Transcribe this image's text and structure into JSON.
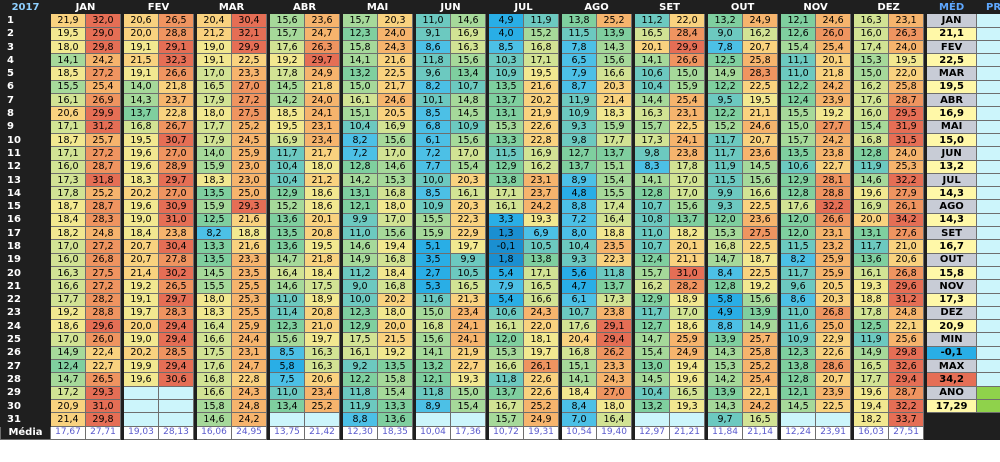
{
  "header": {
    "year": "2017",
    "months": [
      "JAN",
      "FEV",
      "MAR",
      "ABR",
      "MAI",
      "JUN",
      "JUL",
      "AGO",
      "SET",
      "OUT",
      "NOV",
      "DEZ"
    ],
    "med": "MÉD",
    "prec": "PREC"
  },
  "media_label": "Média",
  "media_values": [
    "17,67",
    "27,71",
    "19,03",
    "28,13",
    "16,06",
    "24,95",
    "13,75",
    "21,42",
    "12,30",
    "18,35",
    "10,04",
    "17,36",
    "10,72",
    "19,31",
    "10,54",
    "19,40",
    "12,97",
    "21,21",
    "11,84",
    "21,14",
    "12,24",
    "23,91",
    "16,03",
    "27,51"
  ],
  "days": [
    [
      "21,9",
      "32,0",
      "20,6",
      "26,5",
      "20,4",
      "30,4",
      "15,6",
      "23,6",
      "15,7",
      "20,3",
      "11,0",
      "14,6",
      "4,9",
      "11,9",
      "13,8",
      "25,2",
      "11,2",
      "22,0",
      "13,2",
      "24,9",
      "12,1",
      "24,6",
      "16,3",
      "23,1"
    ],
    [
      "19,5",
      "29,0",
      "20,0",
      "28,8",
      "21,2",
      "32,1",
      "15,7",
      "24,7",
      "12,3",
      "24,0",
      "9,1",
      "16,9",
      "4,0",
      "15,2",
      "11,5",
      "13,9",
      "16,5",
      "28,4",
      "9,0",
      "16,2",
      "12,6",
      "26,0",
      "16,0",
      "26,3"
    ],
    [
      "18,0",
      "29,8",
      "19,1",
      "29,1",
      "19,0",
      "29,9",
      "17,6",
      "26,3",
      "15,8",
      "24,3",
      "8,6",
      "16,3",
      "8,5",
      "16,8",
      "7,8",
      "14,3",
      "20,1",
      "29,9",
      "7,8",
      "20,7",
      "15,4",
      "25,4",
      "17,4",
      "24,0"
    ],
    [
      "14,1",
      "24,2",
      "21,5",
      "32,3",
      "19,1",
      "22,5",
      "19,2",
      "29,7",
      "14,1",
      "21,6",
      "11,8",
      "15,6",
      "10,3",
      "17,1",
      "6,5",
      "15,6",
      "14,1",
      "26,6",
      "12,5",
      "25,8",
      "11,1",
      "20,1",
      "15,3",
      "19,5"
    ],
    [
      "18,5",
      "27,2",
      "19,1",
      "26,6",
      "17,0",
      "23,3",
      "17,8",
      "24,9",
      "13,2",
      "22,5",
      "9,6",
      "13,4",
      "10,9",
      "19,5",
      "7,9",
      "16,6",
      "10,6",
      "15,0",
      "14,9",
      "28,3",
      "11,0",
      "21,8",
      "15,0",
      "22,0"
    ],
    [
      "15,5",
      "25,4",
      "14,0",
      "21,8",
      "16,5",
      "27,0",
      "14,5",
      "21,8",
      "15,0",
      "21,7",
      "8,2",
      "10,7",
      "13,5",
      "21,6",
      "8,7",
      "20,3",
      "10,4",
      "15,9",
      "12,2",
      "22,5",
      "12,2",
      "24,2",
      "16,2",
      "25,8"
    ],
    [
      "16,1",
      "26,9",
      "14,3",
      "23,7",
      "17,9",
      "27,2",
      "14,2",
      "24,0",
      "16,1",
      "24,6",
      "10,1",
      "14,8",
      "13,7",
      "20,2",
      "11,9",
      "21,4",
      "14,4",
      "25,4",
      "9,5",
      "19,5",
      "12,4",
      "23,9",
      "17,6",
      "28,7"
    ],
    [
      "20,6",
      "29,9",
      "13,7",
      "22,8",
      "18,0",
      "27,5",
      "18,5",
      "24,1",
      "15,1",
      "20,5",
      "8,5",
      "14,5",
      "13,1",
      "21,9",
      "10,9",
      "18,3",
      "16,3",
      "23,1",
      "12,2",
      "21,1",
      "15,5",
      "19,2",
      "16,0",
      "29,5"
    ],
    [
      "17,1",
      "31,2",
      "16,8",
      "26,7",
      "17,7",
      "25,2",
      "19,5",
      "23,1",
      "10,4",
      "16,9",
      "6,8",
      "10,9",
      "15,3",
      "22,6",
      "9,3",
      "15,9",
      "15,7",
      "22,5",
      "15,2",
      "24,6",
      "15,0",
      "27,7",
      "15,4",
      "31,9"
    ],
    [
      "18,7",
      "25,7",
      "19,5",
      "30,7",
      "17,9",
      "24,5",
      "16,9",
      "23,4",
      "8,2",
      "15,6",
      "6,1",
      "15,6",
      "13,3",
      "22,8",
      "9,8",
      "17,7",
      "17,3",
      "24,1",
      "11,7",
      "20,7",
      "15,7",
      "24,2",
      "16,8",
      "31,5"
    ],
    [
      "17,1",
      "27,2",
      "19,6",
      "27,0",
      "14,0",
      "25,9",
      "11,7",
      "21,7",
      "7,2",
      "17,0",
      "7,2",
      "17,0",
      "11,5",
      "16,9",
      "12,7",
      "13,7",
      "9,8",
      "23,8",
      "11,7",
      "23,6",
      "13,5",
      "23,8",
      "12,8",
      "24,0"
    ],
    [
      "16,0",
      "28,7",
      "19,6",
      "28,9",
      "15,9",
      "23,0",
      "10,4",
      "18,0",
      "12,8",
      "14,6",
      "7,7",
      "15,4",
      "12,9",
      "16,2",
      "13,7",
      "15,1",
      "8,3",
      "17,8",
      "11,9",
      "14,5",
      "10,6",
      "22,7",
      "11,9",
      "25,3"
    ],
    [
      "17,3",
      "31,8",
      "18,3",
      "29,7",
      "18,3",
      "23,0",
      "10,4",
      "21,2",
      "14,2",
      "15,3",
      "10,0",
      "20,3",
      "13,8",
      "23,1",
      "8,9",
      "15,4",
      "14,1",
      "17,0",
      "11,5",
      "15,6",
      "12,9",
      "28,1",
      "14,6",
      "32,2"
    ],
    [
      "17,8",
      "25,2",
      "20,2",
      "27,0",
      "13,5",
      "25,0",
      "12,9",
      "18,6",
      "13,1",
      "16,8",
      "8,5",
      "16,1",
      "17,1",
      "23,7",
      "4,8",
      "15,5",
      "12,8",
      "17,0",
      "9,9",
      "16,6",
      "12,8",
      "28,8",
      "19,6",
      "27,9"
    ],
    [
      "18,7",
      "28,7",
      "19,6",
      "30,9",
      "15,9",
      "29,3",
      "15,2",
      "18,6",
      "12,1",
      "18,0",
      "10,9",
      "20,3",
      "16,1",
      "24,2",
      "8,8",
      "17,4",
      "10,7",
      "15,6",
      "9,3",
      "22,5",
      "17,6",
      "32,2",
      "16,9",
      "26,1"
    ],
    [
      "18,4",
      "28,3",
      "19,0",
      "31,0",
      "12,5",
      "21,6",
      "13,6",
      "20,1",
      "9,9",
      "17,0",
      "15,5",
      "22,3",
      "3,3",
      "19,3",
      "7,2",
      "16,4",
      "10,8",
      "13,7",
      "12,0",
      "23,6",
      "12,0",
      "26,6",
      "20,0",
      "34,2"
    ],
    [
      "18,2",
      "24,8",
      "18,4",
      "23,8",
      "8,2",
      "18,8",
      "13,5",
      "20,8",
      "11,0",
      "15,6",
      "15,9",
      "22,9",
      "1,3",
      "6,9",
      "8,0",
      "18,8",
      "11,0",
      "18,2",
      "15,3",
      "27,5",
      "12,0",
      "23,1",
      "13,1",
      "27,6"
    ],
    [
      "17,0",
      "27,2",
      "20,7",
      "30,4",
      "13,3",
      "21,6",
      "13,6",
      "19,5",
      "14,6",
      "19,4",
      "5,1",
      "19,7",
      "-0,1",
      "10,5",
      "10,4",
      "23,5",
      "10,7",
      "20,1",
      "16,8",
      "22,5",
      "11,5",
      "23,2",
      "11,7",
      "21,0"
    ],
    [
      "16,0",
      "26,8",
      "20,7",
      "27,8",
      "13,5",
      "23,3",
      "14,7",
      "21,8",
      "14,9",
      "16,8",
      "3,5",
      "9,9",
      "1,8",
      "13,8",
      "9,3",
      "22,3",
      "12,4",
      "21,1",
      "14,7",
      "18,7",
      "8,2",
      "25,9",
      "13,6",
      "20,6"
    ],
    [
      "16,3",
      "27,5",
      "21,4",
      "30,2",
      "14,5",
      "23,5",
      "16,4",
      "18,4",
      "11,2",
      "18,4",
      "2,7",
      "10,5",
      "5,4",
      "17,1",
      "5,6",
      "11,8",
      "15,7",
      "31,0",
      "8,4",
      "22,5",
      "11,7",
      "25,9",
      "16,1",
      "26,8"
    ],
    [
      "16,6",
      "27,2",
      "19,2",
      "26,5",
      "15,5",
      "25,5",
      "14,6",
      "17,5",
      "9,0",
      "16,8",
      "5,3",
      "16,5",
      "7,9",
      "16,5",
      "4,7",
      "13,7",
      "16,2",
      "28,2",
      "12,8",
      "19,2",
      "9,6",
      "20,5",
      "19,3",
      "29,6"
    ],
    [
      "17,7",
      "28,2",
      "19,1",
      "29,7",
      "18,0",
      "25,3",
      "11,0",
      "18,9",
      "10,0",
      "20,2",
      "11,6",
      "21,3",
      "5,4",
      "16,6",
      "6,1",
      "17,3",
      "12,9",
      "18,9",
      "5,8",
      "15,6",
      "8,6",
      "20,3",
      "18,8",
      "31,2"
    ],
    [
      "19,2",
      "28,8",
      "19,7",
      "28,3",
      "18,3",
      "25,5",
      "11,4",
      "20,8",
      "12,3",
      "18,0",
      "15,0",
      "23,4",
      "10,6",
      "24,3",
      "10,7",
      "23,8",
      "11,7",
      "17,0",
      "4,9",
      "13,9",
      "11,0",
      "26,8",
      "17,8",
      "24,8"
    ],
    [
      "18,6",
      "29,6",
      "20,0",
      "29,4",
      "16,4",
      "25,9",
      "12,3",
      "21,0",
      "12,9",
      "20,0",
      "16,8",
      "24,1",
      "16,1",
      "22,0",
      "17,6",
      "29,1",
      "12,7",
      "18,6",
      "8,8",
      "14,9",
      "11,6",
      "25,0",
      "12,5",
      "22,1"
    ],
    [
      "17,0",
      "26,0",
      "19,0",
      "29,4",
      "16,6",
      "24,4",
      "15,6",
      "19,7",
      "17,5",
      "21,5",
      "15,6",
      "24,1",
      "12,0",
      "18,1",
      "20,4",
      "29,4",
      "14,7",
      "25,9",
      "13,9",
      "25,7",
      "10,9",
      "22,9",
      "11,9",
      "25,6"
    ],
    [
      "14,9",
      "22,4",
      "20,2",
      "28,5",
      "17,5",
      "23,1",
      "8,5",
      "16,3",
      "16,1",
      "19,2",
      "14,1",
      "21,9",
      "15,3",
      "19,7",
      "16,8",
      "26,2",
      "15,4",
      "24,9",
      "14,3",
      "25,8",
      "12,3",
      "22,6",
      "14,9",
      "29,8"
    ],
    [
      "12,4",
      "22,7",
      "19,9",
      "29,4",
      "17,6",
      "24,7",
      "5,8",
      "16,3",
      "9,2",
      "13,5",
      "13,2",
      "22,7",
      "16,6",
      "26,1",
      "15,1",
      "23,3",
      "13,0",
      "19,4",
      "15,3",
      "25,2",
      "13,8",
      "28,6",
      "16,5",
      "32,6"
    ],
    [
      "14,7",
      "26,5",
      "19,6",
      "30,6",
      "16,8",
      "22,8",
      "7,5",
      "20,6",
      "12,2",
      "15,8",
      "12,1",
      "19,3",
      "11,8",
      "22,6",
      "14,1",
      "24,3",
      "14,5",
      "19,6",
      "14,2",
      "25,4",
      "12,8",
      "20,7",
      "17,7",
      "29,4"
    ],
    [
      "17,2",
      "29,3",
      "",
      "",
      "16,6",
      "24,3",
      "11,0",
      "23,4",
      "11,8",
      "15,4",
      "11,8",
      "15,0",
      "13,7",
      "22,6",
      "18,4",
      "27,0",
      "10,4",
      "16,5",
      "13,9",
      "22,1",
      "12,1",
      "23,9",
      "19,6",
      "28,7"
    ],
    [
      "20,9",
      "31,0",
      "",
      "",
      "15,8",
      "24,8",
      "13,4",
      "25,2",
      "11,9",
      "13,3",
      "8,9",
      "15,4",
      "16,7",
      "25,2",
      "8,4",
      "18,0",
      "13,2",
      "19,3",
      "14,3",
      "24,2",
      "14,5",
      "22,5",
      "19,4",
      "32,2"
    ],
    [
      "21,4",
      "29,8",
      "",
      "",
      "14,6",
      "24,2",
      "",
      "",
      "8,8",
      "13,6",
      "",
      "",
      "15,7",
      "24,9",
      "7,0",
      "16,4",
      "",
      "",
      "9,7",
      "16,5",
      "",
      "",
      "18,2",
      "33,7"
    ]
  ],
  "summary": [
    {
      "label": "JAN",
      "value": "21,1"
    },
    {
      "label": "FEV",
      "value": "22,5"
    },
    {
      "label": "MAR",
      "value": "19,5"
    },
    {
      "label": "ABR",
      "value": "16,9"
    },
    {
      "label": "MAI",
      "value": "15,0"
    },
    {
      "label": "JUN",
      "value": "13,2"
    },
    {
      "label": "JUL",
      "value": "14,3"
    },
    {
      "label": "AGO",
      "value": "14,3"
    },
    {
      "label": "SET",
      "value": "16,7"
    },
    {
      "label": "OUT",
      "value": "15,8"
    },
    {
      "label": "NOV",
      "value": "17,3"
    },
    {
      "label": "DEZ",
      "value": "20,9"
    },
    {
      "label": "MIN",
      "value": "-0,1"
    },
    {
      "label": "MAX",
      "value": "34,2"
    },
    {
      "label": "ANO",
      "value": "17,29"
    }
  ],
  "colors": {
    "scale": [
      "#1a8fd1",
      "#29aee6",
      "#4cc0e6",
      "#6cc9c0",
      "#7fcf9f",
      "#a6d99a",
      "#d2e394",
      "#f2e890",
      "#f9d27f",
      "#f6b46d",
      "#ef9460",
      "#e56e55"
    ],
    "header_bg": "#1f1f1f",
    "empty_cell": "#ccf5fb",
    "summary_label": "#c8ccd6",
    "summary_value": "#fff8a8",
    "summary_min": "#29aee6",
    "summary_max": "#e56e55",
    "prec_green": "#8fd24b"
  }
}
